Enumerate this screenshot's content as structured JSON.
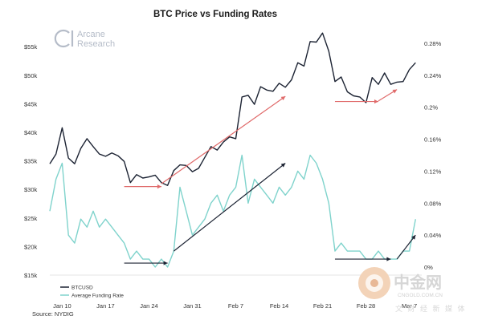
{
  "chart_data": {
    "type": "line",
    "title": "BTC Price vs Funding Rates",
    "brand": [
      "Arcane",
      "Research"
    ],
    "source": "Source: NYDIG",
    "x_ticks": [
      "Jan 10",
      "Jan 17",
      "Jan 24",
      "Jan 31",
      "Feb 7",
      "Feb 14",
      "Feb 21",
      "Feb 28",
      "Mar 7"
    ],
    "x_range": [
      "Jan 8",
      "Mar 9"
    ],
    "left_axis": {
      "ticks": [
        "$15k",
        "$20k",
        "$25k",
        "$30k",
        "$35k",
        "$40k",
        "$45k",
        "$50k",
        "$55k"
      ],
      "ylim": [
        15000,
        57000
      ]
    },
    "right_axis": {
      "ticks": [
        "0%",
        "0.04%",
        "0.08%",
        "0.12%",
        "0.16%",
        "0.2%",
        "0.24%",
        "0.28%"
      ],
      "ylim": [
        -0.0001,
        0.0029
      ]
    },
    "series": [
      {
        "name": "BTCUSD",
        "color": "#1c2333",
        "axis": "left",
        "points": [
          [
            "Jan 8",
            34500
          ],
          [
            "Jan 9",
            36200
          ],
          [
            "Jan 10",
            40800
          ],
          [
            "Jan 11",
            35500
          ],
          [
            "Jan 12",
            34500
          ],
          [
            "Jan 13",
            37200
          ],
          [
            "Jan 14",
            38900
          ],
          [
            "Jan 15",
            37500
          ],
          [
            "Jan 16",
            36200
          ],
          [
            "Jan 17",
            35800
          ],
          [
            "Jan 18",
            36400
          ],
          [
            "Jan 19",
            35900
          ],
          [
            "Jan 20",
            34900
          ],
          [
            "Jan 21",
            31200
          ],
          [
            "Jan 22",
            32600
          ],
          [
            "Jan 23",
            32000
          ],
          [
            "Jan 24",
            32200
          ],
          [
            "Jan 25",
            32500
          ],
          [
            "Jan 26",
            31200
          ],
          [
            "Jan 27",
            30700
          ],
          [
            "Jan 28",
            33300
          ],
          [
            "Jan 29",
            34300
          ],
          [
            "Jan 30",
            34200
          ],
          [
            "Jan 31",
            33100
          ],
          [
            "Feb 1",
            33700
          ],
          [
            "Feb 2",
            35600
          ],
          [
            "Feb 3",
            37500
          ],
          [
            "Feb 4",
            36900
          ],
          [
            "Feb 5",
            38300
          ],
          [
            "Feb 6",
            39200
          ],
          [
            "Feb 7",
            38900
          ],
          [
            "Feb 8",
            46200
          ],
          [
            "Feb 9",
            46500
          ],
          [
            "Feb 10",
            44900
          ],
          [
            "Feb 11",
            48000
          ],
          [
            "Feb 12",
            47400
          ],
          [
            "Feb 13",
            47200
          ],
          [
            "Feb 14",
            48600
          ],
          [
            "Feb 15",
            47900
          ],
          [
            "Feb 16",
            49200
          ],
          [
            "Feb 17",
            52200
          ],
          [
            "Feb 18",
            51600
          ],
          [
            "Feb 19",
            55900
          ],
          [
            "Feb 20",
            55800
          ],
          [
            "Feb 21",
            57400
          ],
          [
            "Feb 22",
            54200
          ],
          [
            "Feb 23",
            48900
          ],
          [
            "Feb 24",
            49700
          ],
          [
            "Feb 25",
            47100
          ],
          [
            "Feb 26",
            46400
          ],
          [
            "Feb 27",
            46200
          ],
          [
            "Feb 28",
            45200
          ],
          [
            "Mar 1",
            49600
          ],
          [
            "Mar 2",
            48400
          ],
          [
            "Mar 3",
            50400
          ],
          [
            "Mar 4",
            48400
          ],
          [
            "Mar 5",
            48800
          ],
          [
            "Mar 6",
            48900
          ],
          [
            "Mar 7",
            51000
          ],
          [
            "Mar 8",
            52200
          ]
        ]
      },
      {
        "name": "Average Funding Rate",
        "color": "#7fd3cc",
        "axis": "right",
        "points": [
          [
            "Jan 8",
            0.0007
          ],
          [
            "Jan 9",
            0.0011
          ],
          [
            "Jan 10",
            0.0013
          ],
          [
            "Jan 11",
            0.0004
          ],
          [
            "Jan 12",
            0.0003
          ],
          [
            "Jan 13",
            0.0006
          ],
          [
            "Jan 14",
            0.0005
          ],
          [
            "Jan 15",
            0.0007
          ],
          [
            "Jan 16",
            0.0005
          ],
          [
            "Jan 17",
            0.0006
          ],
          [
            "Jan 18",
            0.0005
          ],
          [
            "Jan 19",
            0.0004
          ],
          [
            "Jan 20",
            0.0003
          ],
          [
            "Jan 21",
            0.0001
          ],
          [
            "Jan 22",
            0.0002
          ],
          [
            "Jan 23",
            0.0001
          ],
          [
            "Jan 24",
            0.0001
          ],
          [
            "Jan 25",
            0.0
          ],
          [
            "Jan 26",
            0.0001
          ],
          [
            "Jan 27",
            0.0
          ],
          [
            "Jan 28",
            0.0002
          ],
          [
            "Jan 29",
            0.001
          ],
          [
            "Jan 30",
            0.0007
          ],
          [
            "Jan 31",
            0.0004
          ],
          [
            "Feb 1",
            0.0005
          ],
          [
            "Feb 2",
            0.0006
          ],
          [
            "Feb 3",
            0.0008
          ],
          [
            "Feb 4",
            0.0009
          ],
          [
            "Feb 5",
            0.0007
          ],
          [
            "Feb 6",
            0.0009
          ],
          [
            "Feb 7",
            0.001
          ],
          [
            "Feb 8",
            0.0014
          ],
          [
            "Feb 9",
            0.0008
          ],
          [
            "Feb 10",
            0.0011
          ],
          [
            "Feb 11",
            0.001
          ],
          [
            "Feb 12",
            0.0009
          ],
          [
            "Feb 13",
            0.0008
          ],
          [
            "Feb 14",
            0.001
          ],
          [
            "Feb 15",
            0.0009
          ],
          [
            "Feb 16",
            0.001
          ],
          [
            "Feb 17",
            0.0012
          ],
          [
            "Feb 18",
            0.0011
          ],
          [
            "Feb 19",
            0.0014
          ],
          [
            "Feb 20",
            0.0013
          ],
          [
            "Feb 21",
            0.0011
          ],
          [
            "Feb 22",
            0.0008
          ],
          [
            "Feb 23",
            0.0002
          ],
          [
            "Feb 24",
            0.0003
          ],
          [
            "Feb 25",
            0.0002
          ],
          [
            "Feb 26",
            0.0002
          ],
          [
            "Feb 27",
            0.0002
          ],
          [
            "Feb 28",
            0.0001
          ],
          [
            "Mar 1",
            0.0001
          ],
          [
            "Mar 2",
            0.0002
          ],
          [
            "Mar 3",
            0.0001
          ],
          [
            "Mar 4",
            0.0001
          ],
          [
            "Mar 5",
            0.0001
          ],
          [
            "Mar 6",
            0.0002
          ],
          [
            "Mar 7",
            0.0002
          ],
          [
            "Mar 8",
            0.0006
          ]
        ]
      }
    ],
    "annotations": [
      {
        "color": "#e06a6a",
        "axis": "left",
        "from": [
          "Jan 20",
          30500
        ],
        "to": [
          "Jan 26",
          30500
        ]
      },
      {
        "color": "#e06a6a",
        "axis": "left",
        "from": [
          "Jan 26",
          31000
        ],
        "to": [
          "Feb 15",
          46300
        ]
      },
      {
        "color": "#e06a6a",
        "axis": "left",
        "from": [
          "Feb 23",
          45400
        ],
        "to": [
          "Mar 2",
          45400
        ]
      },
      {
        "color": "#e06a6a",
        "axis": "left",
        "from": [
          "Mar 2",
          45500
        ],
        "to": [
          "Mar 5",
          47500
        ]
      },
      {
        "color": "#1c2333",
        "axis": "right",
        "from": [
          "Jan 20",
          5e-05
        ],
        "to": [
          "Jan 27",
          5e-05
        ]
      },
      {
        "color": "#1c2333",
        "axis": "right",
        "from": [
          "Jan 28",
          0.0002
        ],
        "to": [
          "Feb 15",
          0.0013
        ]
      },
      {
        "color": "#1c2333",
        "axis": "right",
        "from": [
          "Feb 23",
          0.0001
        ],
        "to": [
          "Mar 4",
          0.0001
        ]
      },
      {
        "color": "#1c2333",
        "axis": "right",
        "from": [
          "Mar 5",
          0.0001
        ],
        "to": [
          "Mar 8",
          0.0004
        ]
      }
    ],
    "grid": false,
    "legend_position": "bottom-left"
  },
  "watermark": {
    "site_cn": "中金网",
    "site_en": "CNGOLD.COM.CN",
    "tagline_cn": "文 财 经 新 媒 体"
  }
}
